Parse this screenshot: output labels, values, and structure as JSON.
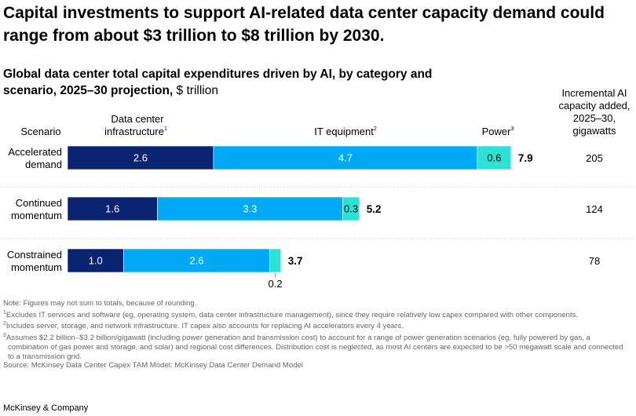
{
  "headline": "Capital investments to support AI-related data center capacity demand could range from about $3 trillion to $8 trillion by 2030.",
  "subtitle": {
    "bold": "Global data center total capital expenditures driven by AI, by category and scenario, 2025–30 projection,",
    "unit": " $ trillion"
  },
  "chart_data": {
    "type": "bar",
    "orientation": "horizontal",
    "stacked": true,
    "categories": [
      "Accelerated demand",
      "Continued momentum",
      "Constrained momentum"
    ],
    "category_lines": [
      [
        "Accelerated",
        "demand"
      ],
      [
        "Continued",
        "momentum"
      ],
      [
        "Constrained",
        "momentum"
      ]
    ],
    "series": [
      {
        "name": "Data center infrastructure",
        "footnote": "1",
        "values": [
          2.6,
          1.6,
          1.0
        ],
        "labels": [
          "2.6",
          "1.6",
          "1.0"
        ],
        "color": "#0a2472"
      },
      {
        "name": "IT equipment",
        "footnote": "2",
        "values": [
          4.7,
          3.3,
          2.6
        ],
        "labels": [
          "4.7",
          "3.3",
          "2.6"
        ],
        "color": "#00a9f4"
      },
      {
        "name": "Power",
        "footnote": "3",
        "values": [
          0.6,
          0.3,
          0.2
        ],
        "labels": [
          "0.6",
          "0.3",
          "0.2"
        ],
        "color": "#2de0d4"
      }
    ],
    "totals": [
      "7.9",
      "5.2",
      "3.7"
    ],
    "column_headers": {
      "scenario": "Scenario",
      "infra": [
        "Data center",
        "infrastructure"
      ],
      "it": "IT equipment",
      "power": "Power",
      "capacity": [
        "Incremental AI",
        "capacity added,",
        "2025–30,",
        "gigawatts"
      ]
    },
    "capacity_gw": [
      "205",
      "124",
      "78"
    ],
    "grid": false,
    "legend": "none"
  },
  "notes": {
    "note": "Note: Figures may not sum to totals, because of rounding.",
    "f1": "Excludes IT services and software (eg, operating system, data center infrastructure management), since they require relatively low capex compared with other components.",
    "f2": "Includes server, storage, and network infrastructure. IT capex also accounts for replacing AI accelerators every 4 years.",
    "f3": "Assumes $2.2 billion–$3.2 billion/gigawatt (including power generation and transmission cost) to account for a range of power generation scenarios (eg, fully powered by gas, a combination of gas power and storage, and solar) and regional cost differences. Distribution cost is neglected, as most AI centers are expected to be >50 megawatt scale and connected to a transmission grid.",
    "source": "Source: McKinsey Data Center Capex TAM Model; McKinsey Data Center Demand Model"
  },
  "brand": "McKinsey & Company"
}
